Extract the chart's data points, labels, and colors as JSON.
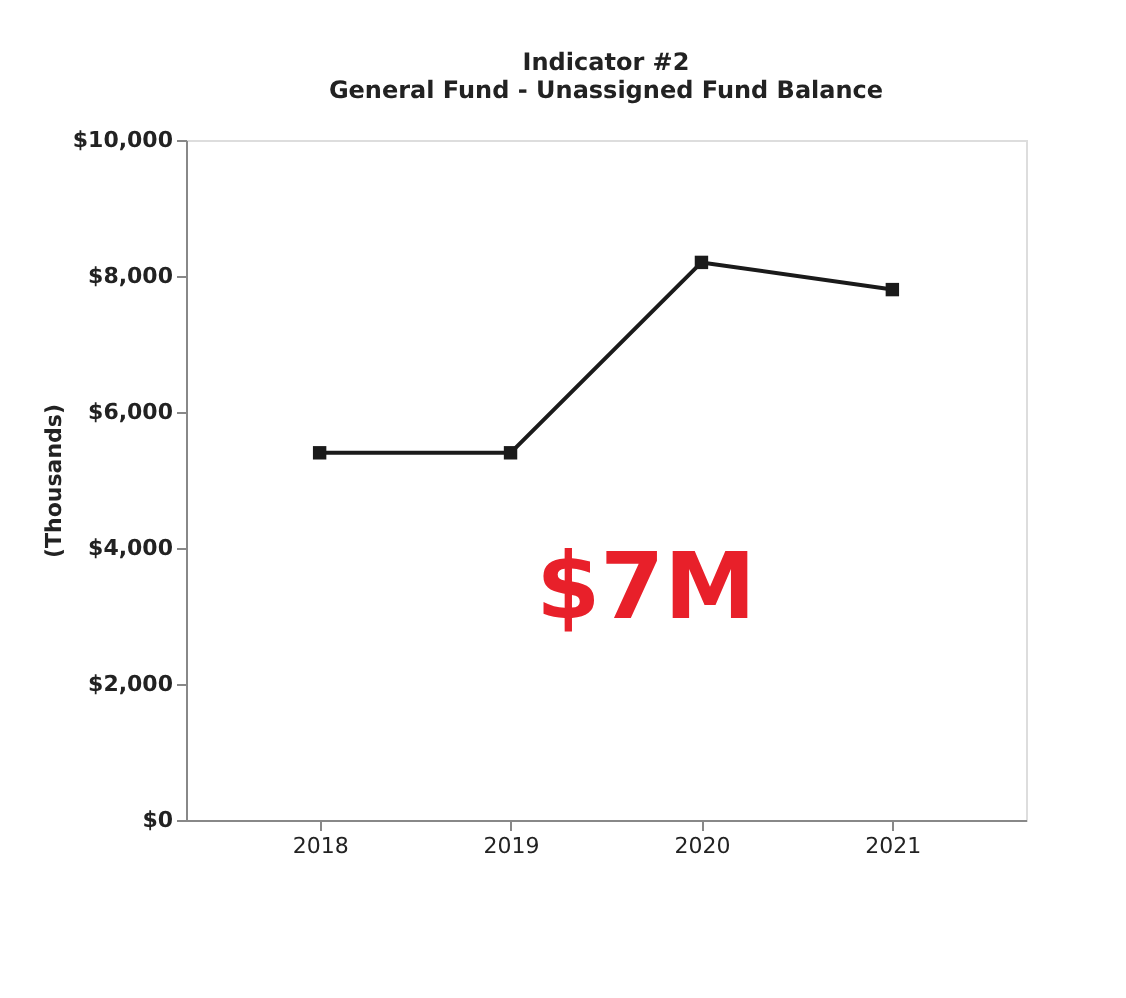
{
  "chart_data": {
    "type": "line",
    "title": [
      "Indicator #2",
      "General Fund - Unassigned Fund Balance"
    ],
    "ylabel": "(Thousands)",
    "categories": [
      "2018",
      "2019",
      "2020",
      "2021"
    ],
    "series": [
      {
        "color": "#1a1a1a",
        "values": [
          5400,
          5400,
          8200,
          7800
        ]
      }
    ],
    "ylim": [
      0,
      10000
    ],
    "yticks": [
      {
        "value": 0,
        "label": "$0"
      },
      {
        "value": 2000,
        "label": "$2,000"
      },
      {
        "value": 4000,
        "label": "$4,000"
      },
      {
        "value": 6000,
        "label": "$6,000"
      },
      {
        "value": 8000,
        "label": "$8,000"
      },
      {
        "value": 10000,
        "label": "$10,000"
      }
    ],
    "annotations": [
      "$7M"
    ],
    "marker": "square",
    "grid": false
  }
}
